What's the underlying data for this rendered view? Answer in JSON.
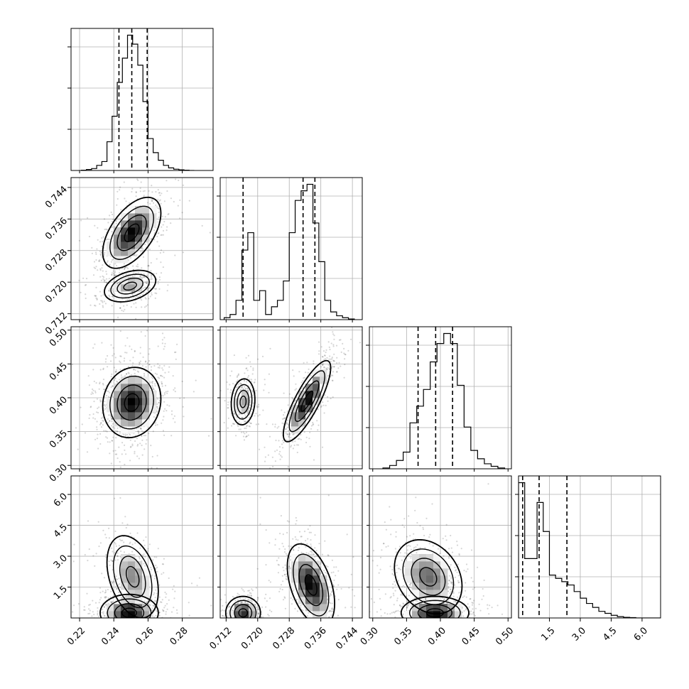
{
  "chart_data": {
    "type": "corner",
    "layout": "lower-triangle 4x4",
    "grid": true,
    "parameters": [
      {
        "range": [
          0.215,
          0.298
        ],
        "ticks": [
          0.22,
          0.24,
          0.26,
          0.28
        ],
        "tick_labels": [
          "0.22",
          "0.24",
          "0.26",
          "0.28"
        ],
        "quantiles": [
          0.243,
          0.2505,
          0.2595
        ],
        "histogram": {
          "edges": [
            0.221,
            0.224,
            0.227,
            0.23,
            0.233,
            0.236,
            0.239,
            0.242,
            0.245,
            0.248,
            0.251,
            0.254,
            0.257,
            0.26,
            0.263,
            0.266,
            0.269,
            0.272,
            0.275,
            0.278,
            0.281,
            0.284,
            0.287
          ],
          "counts": [
            0.5,
            1.5,
            3,
            8,
            14,
            45,
            85,
            138,
            176,
            212,
            198,
            165,
            108,
            50,
            28,
            16,
            8,
            4,
            2,
            1,
            0.5,
            0
          ]
        }
      },
      {
        "range": [
          0.7105,
          0.7465
        ],
        "ticks": [
          0.712,
          0.72,
          0.728,
          0.736,
          0.744
        ],
        "tick_labels": [
          "0.712",
          "0.720",
          "0.728",
          "0.736",
          "0.744"
        ],
        "quantiles": [
          0.7163,
          0.7315,
          0.7345
        ],
        "histogram": {
          "edges": [
            0.7115,
            0.713,
            0.7145,
            0.716,
            0.7175,
            0.719,
            0.7205,
            0.722,
            0.7235,
            0.725,
            0.7265,
            0.728,
            0.7295,
            0.731,
            0.7325,
            0.734,
            0.7355,
            0.737,
            0.7385,
            0.74,
            0.7415,
            0.743,
            0.7445
          ],
          "counts": [
            3,
            8,
            30,
            108,
            135,
            30,
            45,
            8,
            20,
            30,
            60,
            135,
            185,
            200,
            210,
            150,
            90,
            30,
            12,
            6,
            3,
            1
          ]
        }
      },
      {
        "range": [
          0.295,
          0.505
        ],
        "ticks": [
          0.3,
          0.35,
          0.4,
          0.45,
          0.5
        ],
        "tick_labels": [
          "0.30",
          "0.35",
          "0.40",
          "0.45",
          "0.50"
        ],
        "quantiles": [
          0.367,
          0.393,
          0.418
        ],
        "histogram": {
          "edges": [
            0.315,
            0.325,
            0.335,
            0.345,
            0.355,
            0.365,
            0.375,
            0.385,
            0.395,
            0.405,
            0.415,
            0.425,
            0.435,
            0.445,
            0.455,
            0.465,
            0.475,
            0.485,
            0.495
          ],
          "counts": [
            1,
            4,
            10,
            20,
            55,
            75,
            95,
            128,
            150,
            162,
            150,
            100,
            50,
            22,
            12,
            6,
            3,
            1
          ]
        }
      },
      {
        "range": [
          0.0,
          6.9
        ],
        "ticks": [
          1.5,
          3.0,
          4.5,
          6.0
        ],
        "tick_labels": [
          "1.5",
          "3.0",
          "4.5",
          "6.0"
        ],
        "quantiles": [
          0.2,
          1.0,
          2.35
        ],
        "histogram": {
          "edges": [
            0.0,
            0.3,
            0.6,
            0.9,
            1.2,
            1.5,
            1.8,
            2.1,
            2.4,
            2.7,
            3.0,
            3.3,
            3.6,
            3.9,
            4.2,
            4.5,
            4.8,
            5.1,
            5.4,
            5.7,
            6.0,
            6.3,
            6.6,
            6.9
          ],
          "counts": [
            205,
            90,
            90,
            175,
            131,
            65,
            60,
            55,
            50,
            40,
            30,
            22,
            16,
            10,
            7,
            4,
            2,
            1,
            0.5,
            0,
            0,
            0,
            0
          ]
        }
      }
    ],
    "contours": [
      {
        "row": 1,
        "col": 0,
        "clusters": [
          {
            "center": [
              0.2505,
              0.7325
            ],
            "sigma": [
              0.0085,
              0.0045
            ],
            "rho": 0.55,
            "weight": 1.0
          },
          {
            "center": [
              0.2495,
              0.719
            ],
            "sigma": [
              0.0075,
              0.002
            ],
            "rho": 0.35,
            "weight": 0.55
          }
        ]
      },
      {
        "row": 2,
        "col": 0,
        "clusters": [
          {
            "center": [
              0.2505,
              0.393
            ],
            "sigma": [
              0.0085,
              0.026
            ],
            "rho": 0.1,
            "weight": 1.0
          }
        ]
      },
      {
        "row": 2,
        "col": 1,
        "clusters": [
          {
            "center": [
              0.7163,
              0.394
            ],
            "sigma": [
              0.0015,
              0.017
            ],
            "rho": 0.1,
            "weight": 0.55
          },
          {
            "center": [
              0.7325,
              0.395
            ],
            "sigma": [
              0.003,
              0.03
            ],
            "rho": 0.82,
            "weight": 1.0
          }
        ]
      },
      {
        "row": 3,
        "col": 0,
        "clusters": [
          {
            "center": [
              0.249,
              0.25
            ],
            "sigma": [
              0.0085,
              0.45
            ],
            "rho": 0.0,
            "weight": 1.0
          },
          {
            "center": [
              0.251,
              2.0
            ],
            "sigma": [
              0.0075,
              1.0
            ],
            "rho": -0.35,
            "weight": 0.6
          }
        ]
      },
      {
        "row": 3,
        "col": 1,
        "clusters": [
          {
            "center": [
              0.7163,
              0.25
            ],
            "sigma": [
              0.0022,
              0.4
            ],
            "rho": 0.0,
            "weight": 0.9
          },
          {
            "center": [
              0.7335,
              1.6
            ],
            "sigma": [
              0.003,
              1.0
            ],
            "rho": -0.45,
            "weight": 1.0
          }
        ]
      },
      {
        "row": 3,
        "col": 2,
        "clusters": [
          {
            "center": [
              0.392,
              0.25
            ],
            "sigma": [
              0.025,
              0.4
            ],
            "rho": 0.0,
            "weight": 1.0
          },
          {
            "center": [
              0.382,
              2.0
            ],
            "sigma": [
              0.025,
              0.9
            ],
            "rho": -0.25,
            "weight": 0.7
          }
        ]
      }
    ]
  }
}
